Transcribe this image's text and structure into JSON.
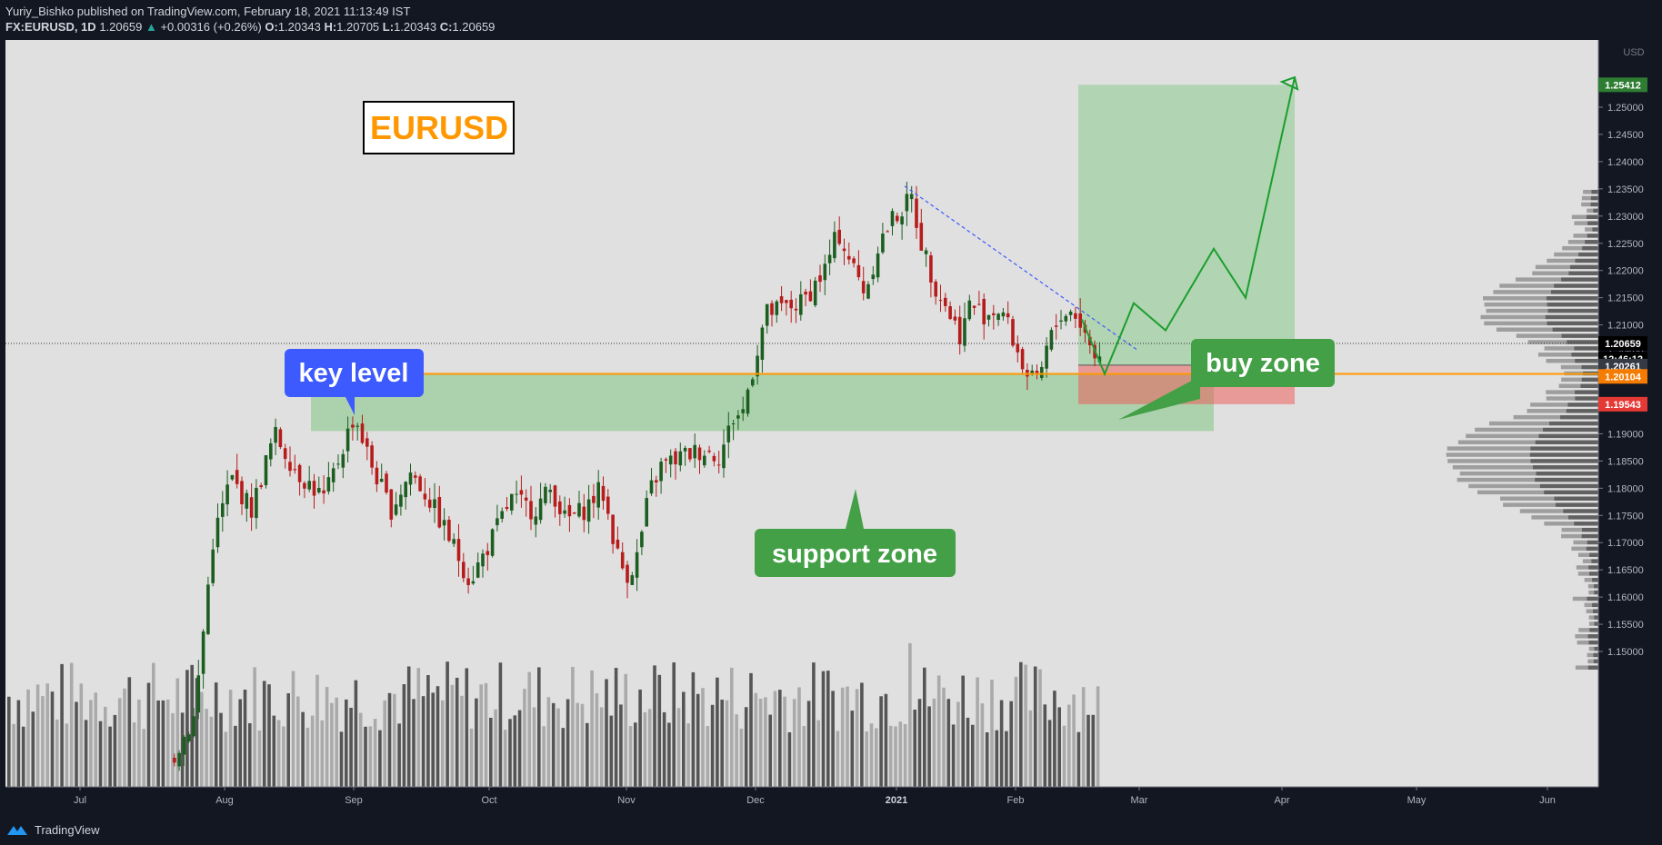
{
  "header": {
    "published": "Yuriy_Bishko published on TradingView.com, February 18, 2021 11:13:49 IST",
    "symbol": "FX:EURUSD, 1D",
    "last": "1.20659",
    "change": "+0.00316 (+0.26%)",
    "open_label": "O:",
    "open": "1.20343",
    "high_label": "H:",
    "high": "1.20705",
    "low_label": "L:",
    "low": "1.20343",
    "close_label": "C:",
    "close": "1.20659"
  },
  "footer": {
    "brand": "TradingView"
  },
  "annotations": {
    "title": "EURUSD",
    "key_level": "key level",
    "support_zone": "support zone",
    "buy_zone": "buy zone"
  },
  "axis": {
    "currency": "USD"
  },
  "price_labels": [
    {
      "value": "1.25412",
      "color": "#2e7d32"
    },
    {
      "value": "1.20659",
      "color": "#000000"
    },
    {
      "value": "12:46:12",
      "color": "#000000"
    },
    {
      "value": "1.20261",
      "color": "#363a45"
    },
    {
      "value": "1.20104",
      "color": "#f57c00"
    },
    {
      "value": "1.19543",
      "color": "#e53935"
    }
  ],
  "colors": {
    "background": "#e0e0e0",
    "up": "#1b5e20",
    "down": "#b71c1c",
    "key_level_line": "#ff9800",
    "support_zone": "#81c784",
    "target_zone": "#81c784",
    "stop_zone": "#ef5350",
    "key_badge": "#3d5afe",
    "green_badge": "#43a047"
  },
  "chart_data": {
    "type": "candlestick",
    "symbol": "EURUSD",
    "timeframe": "1D",
    "y_ticks": [
      "1.15000",
      "1.15500",
      "1.16000",
      "1.16500",
      "1.17000",
      "1.17500",
      "1.18000",
      "1.18500",
      "1.19000",
      "1.19500",
      "1.20000",
      "1.20500",
      "1.21000",
      "1.21500",
      "1.22000",
      "1.22500",
      "1.23000",
      "1.23500",
      "1.24000",
      "1.24500",
      "1.25000"
    ],
    "x_ticks": [
      "Jul",
      "Aug",
      "Sep",
      "Oct",
      "Nov",
      "Dec",
      "2021",
      "Feb",
      "Mar",
      "Apr",
      "May",
      "Jun"
    ],
    "ylim": [
      1.1445,
      1.2612
    ],
    "key_level": 1.201,
    "support_zone": [
      1.1905,
      1.201
    ],
    "trade": {
      "entry": 1.20261,
      "target": 1.25412,
      "stop": 1.19543
    },
    "trendline": {
      "from_price": 1.2355,
      "to_price": 1.2055
    },
    "projection_path": [
      1.203,
      1.214,
      1.201,
      1.204,
      1.224,
      1.215,
      1.2405,
      1.2285,
      1.2555
    ],
    "monthly_path": [
      {
        "month": "Jun 2020",
        "close": 1.115
      },
      {
        "month": "Jul 2020",
        "close": 1.178
      },
      {
        "month": "Aug 2020",
        "close": 1.194
      },
      {
        "month": "Sep 2020",
        "close": 1.171
      },
      {
        "month": "Oct 2020",
        "close": 1.165
      },
      {
        "month": "Nov 2020",
        "close": 1.196
      },
      {
        "month": "Dec 2020",
        "close": 1.2215
      },
      {
        "month": "Jan 2021",
        "close": 1.2135
      },
      {
        "month": "Feb 2021",
        "close": 1.2066
      }
    ],
    "last_close": 1.20659,
    "volume_visible": true,
    "volume_profile_visible": true,
    "grid": false
  }
}
